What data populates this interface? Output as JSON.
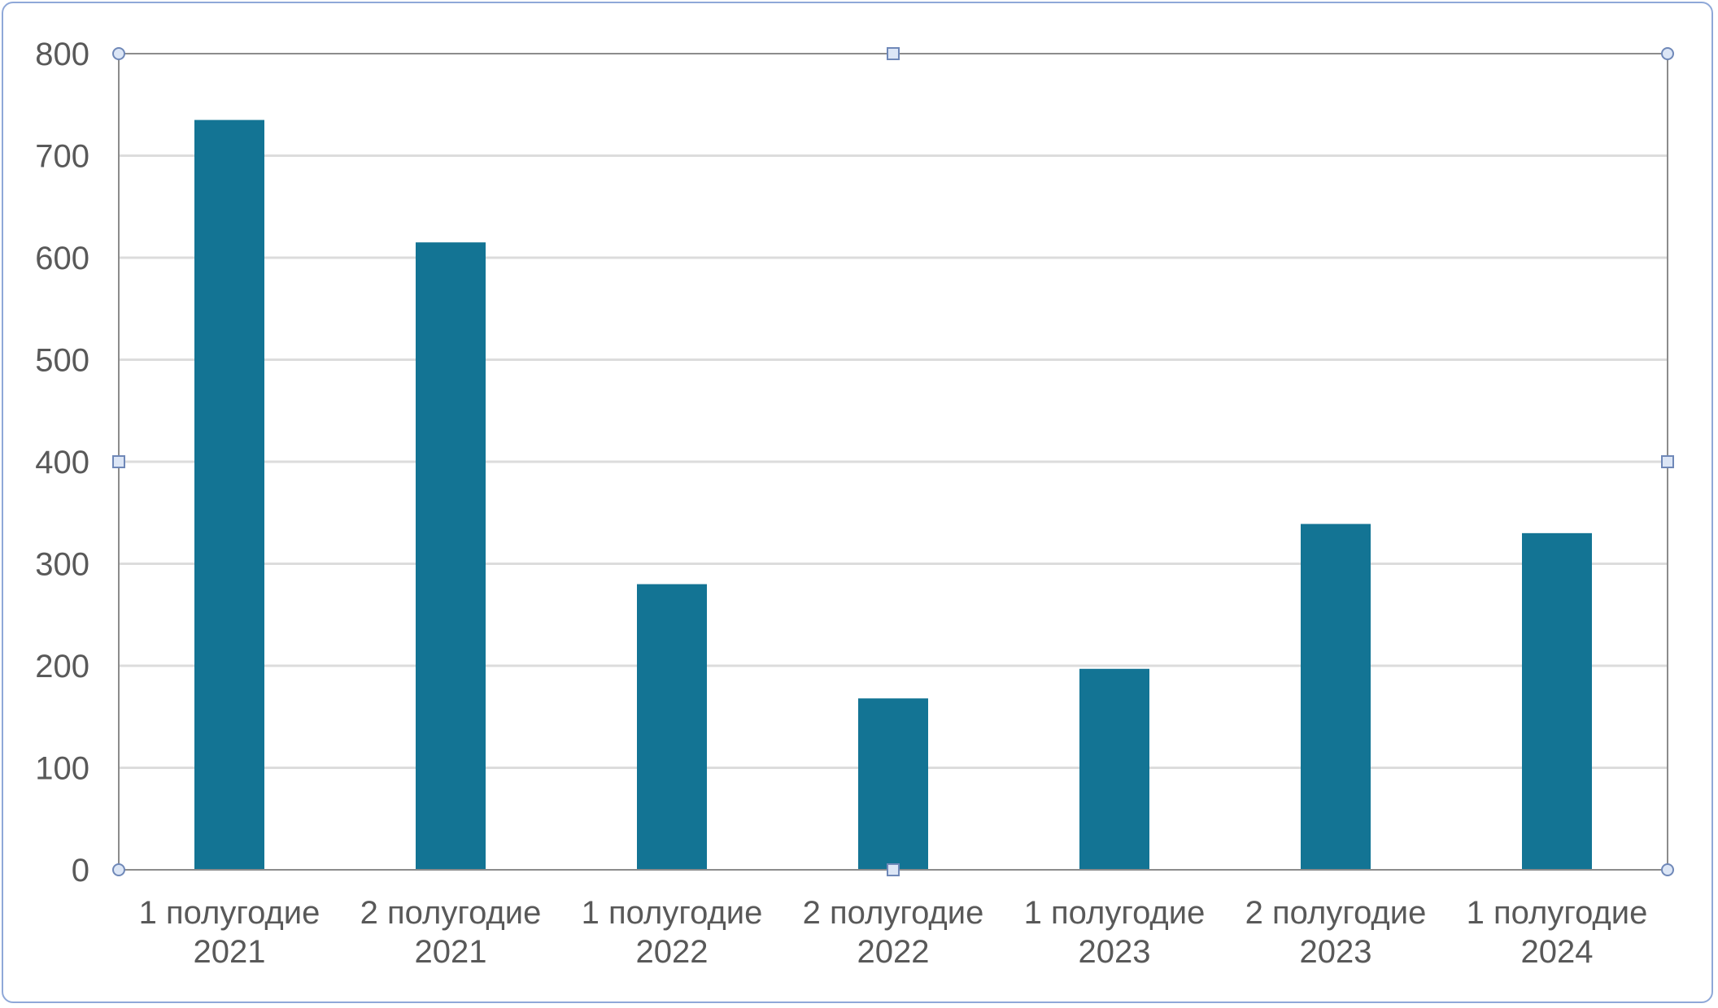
{
  "chart_data": {
    "type": "bar",
    "title": "",
    "xlabel": "",
    "ylabel": "",
    "categories": [
      [
        "1 полугодие",
        "2021"
      ],
      [
        "2 полугодие",
        "2021"
      ],
      [
        "1 полугодие",
        "2022"
      ],
      [
        "2 полугодие",
        "2022"
      ],
      [
        "1 полугодие",
        "2023"
      ],
      [
        "2 полугодие",
        "2023"
      ],
      [
        "1 полугодие",
        "2024"
      ]
    ],
    "series": [
      {
        "values": [
          735,
          615,
          280,
          168,
          197,
          339,
          330
        ]
      }
    ],
    "ylim": [
      0,
      800
    ],
    "yticks": [
      0,
      100,
      200,
      300,
      400,
      500,
      600,
      700,
      800
    ],
    "grid": true,
    "legend": "none",
    "colors": {
      "bar": "#137494",
      "grid": "#dcdcdc",
      "axis_text": "#595959",
      "frame": "#8fa8d8",
      "selection_handle": "#6f88b8"
    }
  }
}
